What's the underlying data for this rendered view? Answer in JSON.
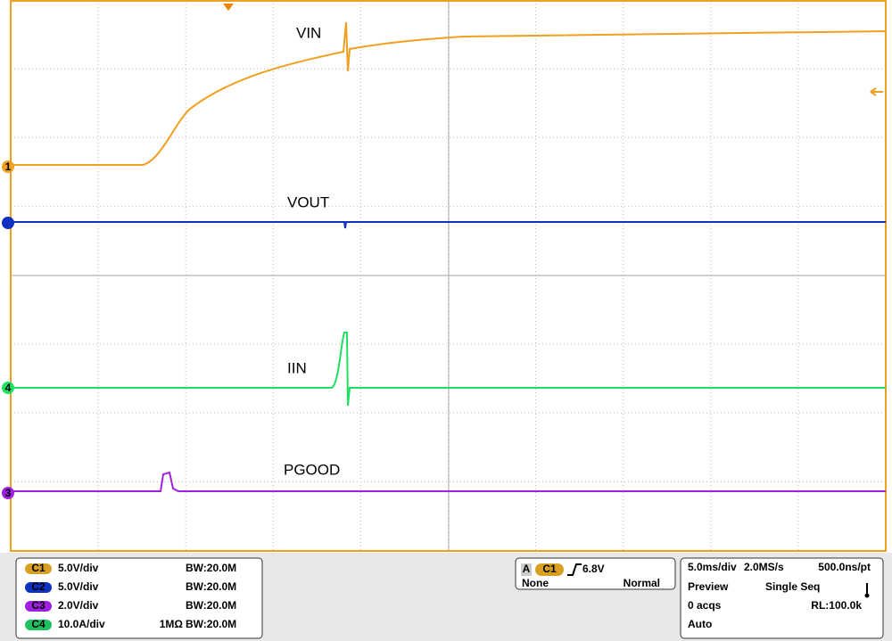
{
  "traces": {
    "vin": "VIN",
    "vout": "VOUT",
    "iin": "IIN",
    "pgood": "PGOOD"
  },
  "markers": {
    "ch1": "1",
    "ch4": "4",
    "ch3": "3"
  },
  "channels": [
    {
      "badge": "C1",
      "scale": "5.0V/div",
      "impedance": "",
      "bandwidth": "BW:20.0M"
    },
    {
      "badge": "C2",
      "scale": "5.0V/div",
      "impedance": "",
      "bandwidth": "BW:20.0M"
    },
    {
      "badge": "C3",
      "scale": "2.0V/div",
      "impedance": "",
      "bandwidth": "BW:20.0M"
    },
    {
      "badge": "C4",
      "scale": "10.0A/div",
      "impedance": "1MΩ",
      "bandwidth": "BW:20.0M"
    }
  ],
  "trigger": {
    "id": "A",
    "source": "C1",
    "level": "6.8V",
    "coupling": "None",
    "mode": "Normal"
  },
  "timebase": {
    "scale": "5.0ms/div",
    "rate": "2.0MS/s",
    "resolution": "500.0ns/pt",
    "state": "Preview",
    "seq": "Single Seq",
    "acqs": "0 acqs",
    "record": "RL:100.0k",
    "auto": "Auto"
  }
}
